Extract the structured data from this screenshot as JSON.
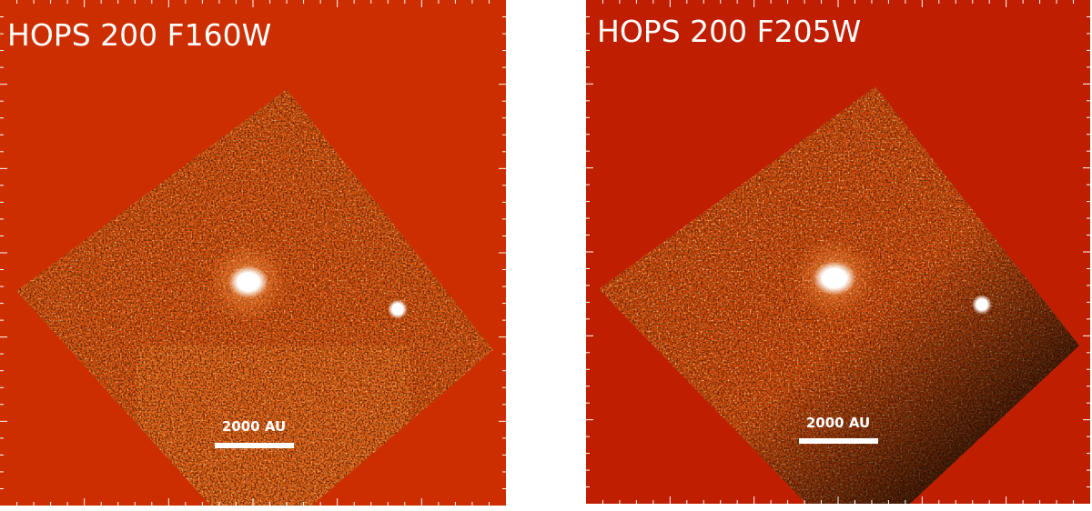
{
  "panels": [
    {
      "title": "HOPS 200 F160W",
      "scale_label": "2000 AU"
    },
    {
      "title": "HOPS 200 F205W",
      "scale_label": "2000 AU"
    }
  ]
}
